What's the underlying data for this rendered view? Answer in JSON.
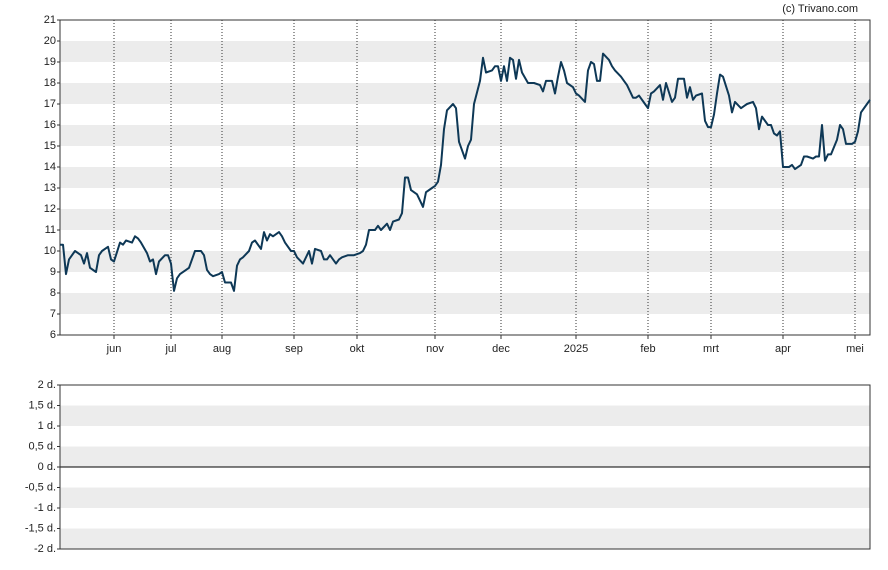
{
  "chart_data": [
    {
      "type": "line",
      "source": "(c) Trivano.com",
      "x": [
        0,
        1,
        2,
        3,
        5,
        6,
        7,
        8,
        9,
        10,
        12,
        13,
        14,
        16,
        17,
        18,
        20,
        21,
        22,
        24,
        25,
        26,
        27,
        29,
        30,
        31,
        32,
        33,
        35,
        36,
        37,
        38,
        39,
        40,
        42,
        43,
        44,
        45,
        47,
        48,
        49,
        50,
        51,
        53,
        54,
        55,
        56,
        57,
        58,
        59,
        60,
        61,
        63,
        64,
        65,
        67,
        68,
        69,
        70,
        71,
        73,
        74,
        75,
        77,
        78,
        79,
        81,
        82,
        83,
        84,
        85,
        87,
        88,
        89,
        90,
        92,
        93,
        94,
        96,
        97,
        98,
        100,
        101,
        102,
        103,
        105,
        106,
        107,
        109,
        110,
        111,
        113,
        114,
        115,
        116,
        117,
        119,
        120,
        121,
        122,
        124,
        125,
        126,
        127,
        128,
        129,
        131,
        132,
        133,
        135,
        136,
        137,
        138,
        140,
        141,
        142,
        144,
        145,
        146,
        147,
        148,
        149,
        150,
        151,
        152,
        153,
        154,
        156,
        157,
        158,
        160,
        161,
        162,
        164,
        165,
        166,
        167,
        168,
        169,
        171,
        172,
        173,
        175,
        176,
        177,
        178,
        179,
        180,
        181,
        183,
        184,
        185,
        187,
        188,
        189,
        191,
        192,
        193,
        195,
        196,
        197,
        198,
        200,
        201,
        202,
        204,
        205,
        206,
        208,
        209,
        210,
        211,
        212,
        214,
        215,
        216,
        217,
        218,
        219,
        220,
        221,
        223,
        224,
        225,
        227,
        228,
        229,
        231,
        232,
        233,
        234,
        236,
        237,
        238,
        239,
        240,
        241,
        243,
        244,
        245,
        247,
        248,
        249,
        251,
        252,
        253,
        254,
        255,
        256,
        257,
        259,
        260,
        261,
        262,
        264,
        265,
        266,
        267,
        269,
        270
      ],
      "series": [
        {
          "color": "#0e3856",
          "values": [
            10.3,
            10.3,
            8.9,
            9.6,
            10.0,
            9.9,
            9.8,
            9.4,
            9.9,
            9.2,
            9.0,
            9.8,
            10.0,
            10.2,
            9.6,
            9.5,
            10.4,
            10.3,
            10.5,
            10.4,
            10.7,
            10.6,
            10.4,
            9.9,
            9.5,
            9.6,
            8.9,
            9.5,
            9.8,
            9.8,
            9.4,
            8.1,
            8.7,
            8.9,
            9.1,
            9.2,
            9.6,
            10.0,
            10.0,
            9.8,
            9.1,
            8.9,
            8.8,
            8.9,
            9.0,
            8.5,
            8.5,
            8.5,
            8.1,
            9.3,
            9.6,
            9.7,
            10.0,
            10.4,
            10.5,
            10.1,
            10.9,
            10.5,
            10.8,
            10.7,
            10.9,
            10.7,
            10.4,
            10.0,
            10.0,
            9.7,
            9.4,
            9.7,
            10.0,
            9.4,
            10.1,
            10.0,
            9.6,
            9.6,
            9.8,
            9.4,
            9.6,
            9.7,
            9.8,
            9.8,
            9.8,
            9.9,
            10.0,
            10.3,
            11.0,
            11.0,
            11.2,
            11.0,
            11.3,
            11.0,
            11.4,
            11.5,
            11.8,
            13.5,
            13.5,
            12.9,
            12.7,
            12.4,
            12.1,
            12.8,
            13.0,
            13.1,
            13.3,
            14.1,
            15.8,
            16.7,
            17.0,
            16.8,
            15.2,
            14.4,
            15.0,
            15.3,
            17.0,
            18.1,
            19.2,
            18.5,
            18.6,
            18.8,
            18.8,
            18.1,
            18.8,
            18.1,
            19.2,
            19.1,
            18.2,
            19.1,
            18.5,
            18.0,
            18.0,
            18.0,
            17.9,
            17.6,
            18.1,
            18.1,
            17.5,
            18.3,
            19.0,
            18.6,
            18.0,
            17.8,
            17.5,
            17.4,
            17.1,
            18.6,
            19.0,
            18.9,
            18.1,
            18.1,
            19.4,
            19.1,
            18.8,
            18.6,
            18.3,
            18.1,
            17.9,
            17.3,
            17.3,
            17.4,
            17.0,
            16.8,
            17.5,
            17.6,
            17.9,
            17.2,
            18.0,
            17.1,
            17.3,
            18.2,
            18.2,
            17.3,
            17.8,
            17.2,
            17.4,
            17.5,
            16.2,
            15.9,
            15.9,
            16.5,
            17.5,
            18.4,
            18.3,
            17.4,
            16.6,
            17.1,
            16.8,
            16.9,
            17.0,
            17.1,
            16.8,
            15.8,
            16.4,
            16.0,
            16.0,
            15.6,
            15.5,
            15.7,
            14.0,
            14.0,
            14.1,
            13.9,
            14.1,
            14.5,
            14.5,
            14.4,
            14.5,
            14.5,
            16.0,
            14.3,
            14.6,
            14.6,
            15.3,
            16.0,
            15.8,
            15.1,
            15.1,
            15.2,
            15.7,
            16.6,
            17.0,
            17.2
          ]
        }
      ],
      "xlim": [
        0,
        270
      ],
      "xticks": [
        {
          "value": 18,
          "label": "jun"
        },
        {
          "value": 37,
          "label": "jul"
        },
        {
          "value": 54,
          "label": "aug"
        },
        {
          "value": 78,
          "label": "sep"
        },
        {
          "value": 99,
          "label": "okt"
        },
        {
          "value": 125,
          "label": "nov"
        },
        {
          "value": 147,
          "label": "dec"
        },
        {
          "value": 172,
          "label": "2025"
        },
        {
          "value": 196,
          "label": "feb"
        },
        {
          "value": 217,
          "label": "mrt"
        },
        {
          "value": 241,
          "label": "apr"
        },
        {
          "value": 265,
          "label": "mei"
        }
      ],
      "ylim": [
        6,
        21
      ],
      "yticks": [
        6,
        7,
        8,
        9,
        10,
        11,
        12,
        13,
        14,
        15,
        16,
        17,
        18,
        19,
        20,
        21
      ],
      "grid": true
    },
    {
      "type": "line",
      "ylim": [
        -2,
        2
      ],
      "yticks": [
        {
          "value": -2,
          "label": "-2 d."
        },
        {
          "value": -1.5,
          "label": "-1,5 d."
        },
        {
          "value": -1,
          "label": "-1 d."
        },
        {
          "value": -0.5,
          "label": "-0,5 d."
        },
        {
          "value": 0,
          "label": "0 d."
        },
        {
          "value": 0.5,
          "label": "0,5 d."
        },
        {
          "value": 1,
          "label": "1 d."
        },
        {
          "value": 1.5,
          "label": "1,5 d."
        },
        {
          "value": 2,
          "label": "2 d."
        }
      ]
    }
  ]
}
